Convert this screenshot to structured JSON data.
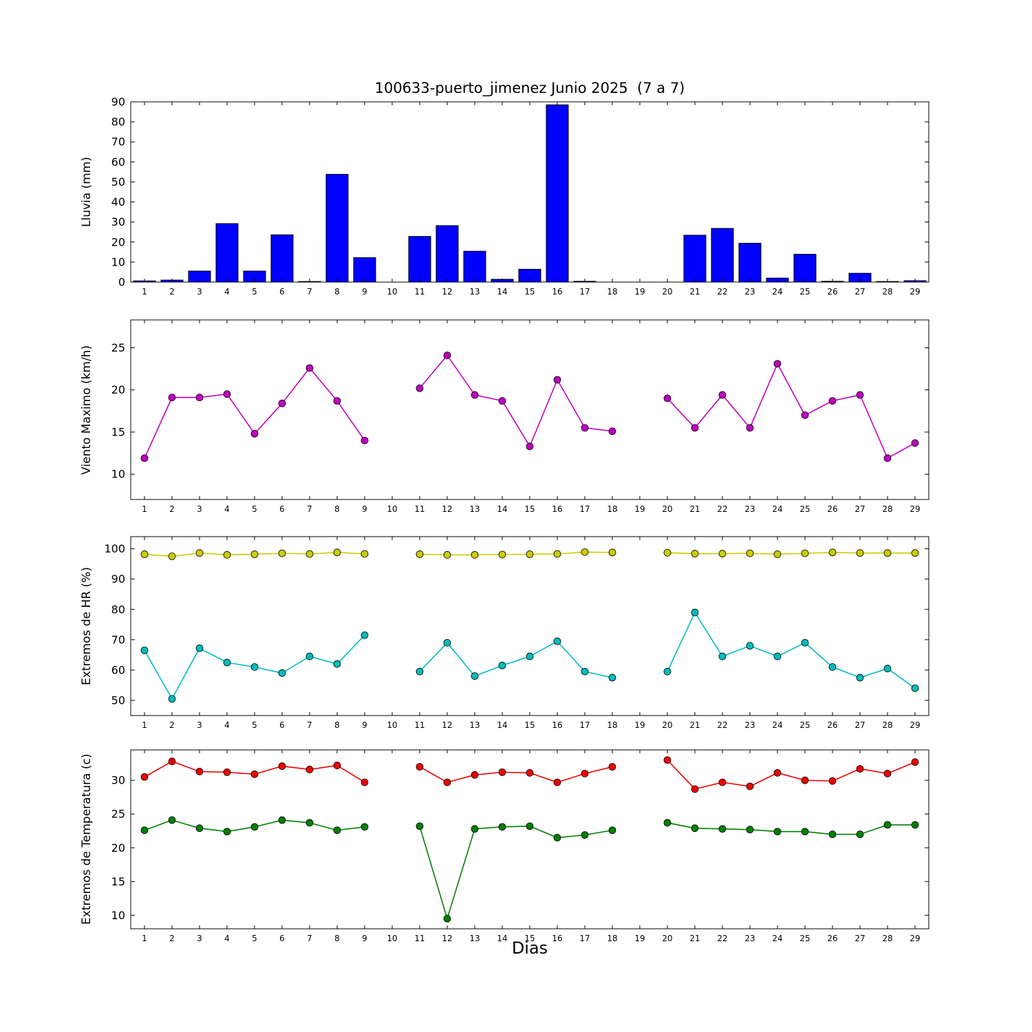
{
  "title": "100633-puerto_jimenez Junio 2025  (7 a 7)",
  "xlabel": "Dias",
  "days": [
    1,
    2,
    3,
    4,
    5,
    6,
    7,
    8,
    9,
    10,
    11,
    12,
    13,
    14,
    15,
    16,
    17,
    18,
    19,
    20,
    21,
    22,
    23,
    24,
    25,
    26,
    27,
    28,
    29
  ],
  "chart_data": [
    {
      "type": "bar",
      "name": "lluvia",
      "ylabel": "Lluvia (mm)",
      "color": "#0000ff",
      "ylim": [
        0,
        90
      ],
      "yticks": [
        0,
        10,
        20,
        30,
        40,
        50,
        60,
        70,
        80,
        90
      ],
      "xlim": [
        0.5,
        29.5
      ],
      "values": [
        0.6,
        1.0,
        5.5,
        29.2,
        5.5,
        23.6,
        0.3,
        53.8,
        12.2,
        0,
        22.8,
        28.2,
        15.4,
        1.4,
        6.4,
        88.5,
        0.4,
        0,
        0,
        0,
        23.4,
        26.8,
        19.4,
        2.0,
        13.9,
        0.4,
        4.4,
        0.3,
        0.7
      ]
    },
    {
      "type": "line",
      "name": "viento",
      "ylabel": "Viento Maximo (km/h)",
      "ylim": [
        7,
        28.3
      ],
      "yticks": [
        10,
        15,
        20,
        25
      ],
      "xlim": [
        0.5,
        29.5
      ],
      "series": [
        {
          "name": "viento_maximo",
          "color": "#bf00bf",
          "values": [
            11.9,
            19.1,
            19.1,
            19.5,
            14.8,
            18.4,
            22.6,
            18.7,
            14.0,
            null,
            20.2,
            24.1,
            19.4,
            18.7,
            13.3,
            21.2,
            15.5,
            15.1,
            null,
            19.0,
            15.5,
            19.4,
            15.5,
            23.1,
            17.0,
            18.7,
            19.4,
            11.9,
            13.7
          ]
        }
      ]
    },
    {
      "type": "line",
      "name": "hr",
      "ylabel": "Extremos de HR (%)",
      "ylim": [
        45,
        104
      ],
      "yticks": [
        50,
        60,
        70,
        80,
        90,
        100
      ],
      "xlim": [
        0.5,
        29.5
      ],
      "series": [
        {
          "name": "hr_maxima",
          "color": "#cccc00",
          "values": [
            98.2,
            97.5,
            98.6,
            98.0,
            98.2,
            98.5,
            98.3,
            98.8,
            98.3,
            null,
            98.2,
            98.0,
            98.0,
            98.1,
            98.2,
            98.3,
            98.9,
            98.8,
            null,
            98.7,
            98.4,
            98.4,
            98.5,
            98.2,
            98.5,
            98.8,
            98.6,
            98.6,
            98.6
          ]
        },
        {
          "name": "hr_minima",
          "color": "#00bcbc",
          "values": [
            66.5,
            50.5,
            67.2,
            62.5,
            61.0,
            59.0,
            64.5,
            62.0,
            71.5,
            null,
            59.5,
            69.0,
            58.0,
            61.5,
            64.5,
            69.5,
            59.5,
            57.5,
            null,
            59.5,
            79.0,
            64.5,
            68.0,
            64.5,
            69.0,
            61.0,
            57.5,
            60.5,
            54.0
          ]
        }
      ]
    },
    {
      "type": "line",
      "name": "temperatura",
      "ylabel": "Extremos de Temperatura (c)",
      "ylim": [
        8,
        34.5
      ],
      "yticks": [
        10,
        15,
        20,
        25,
        30
      ],
      "xlim": [
        0.5,
        29.5
      ],
      "series": [
        {
          "name": "temperatura_maxima",
          "color": "#ee0000",
          "values": [
            30.5,
            32.8,
            31.3,
            31.2,
            30.9,
            32.1,
            31.6,
            32.2,
            29.7,
            null,
            32.0,
            29.7,
            30.8,
            31.2,
            31.1,
            29.7,
            31.0,
            32.0,
            null,
            33.0,
            28.7,
            29.7,
            29.1,
            31.1,
            30.0,
            29.9,
            31.7,
            31.0,
            32.7
          ]
        },
        {
          "name": "temperatura_minima",
          "color": "#007f00",
          "values": [
            22.6,
            24.1,
            22.9,
            22.4,
            23.1,
            24.1,
            23.7,
            22.6,
            23.1,
            null,
            23.2,
            9.5,
            22.8,
            23.1,
            23.2,
            21.5,
            21.9,
            22.6,
            null,
            23.7,
            22.9,
            22.8,
            22.7,
            22.4,
            22.4,
            22.0,
            22.0,
            23.4,
            23.4
          ]
        }
      ]
    }
  ]
}
